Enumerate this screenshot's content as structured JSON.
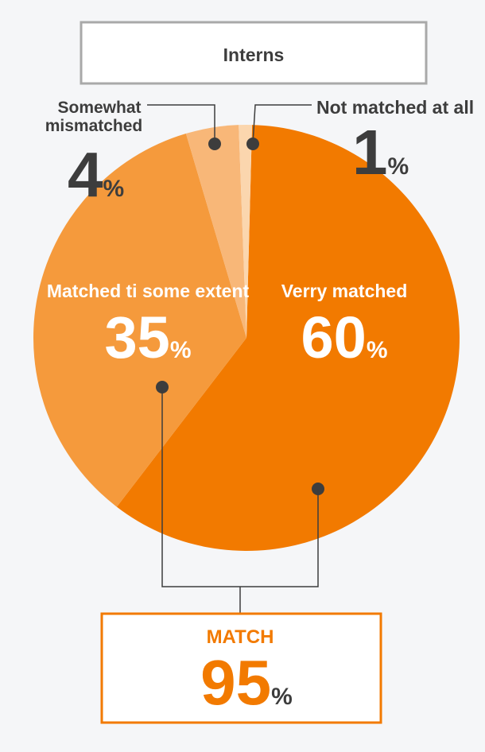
{
  "chart_data": {
    "type": "pie",
    "title": "Interns",
    "slices": [
      {
        "label": "Verry matched",
        "value": 60,
        "color": "#f27a00"
      },
      {
        "label": "Matched ti some extent",
        "value": 35,
        "color": "#f59a3c"
      },
      {
        "label": "Somewhat mismatched",
        "value": 4,
        "color": "#f8b778"
      },
      {
        "label": "Not matched at all",
        "value": 1,
        "color": "#fbd6ae"
      }
    ],
    "somewhat_label_line1": "Somewhat",
    "somewhat_label_line2": "mismatched",
    "percent_sign": "%",
    "summary": {
      "label": "MATCH",
      "value": 95,
      "accent": "#f27a00"
    }
  }
}
